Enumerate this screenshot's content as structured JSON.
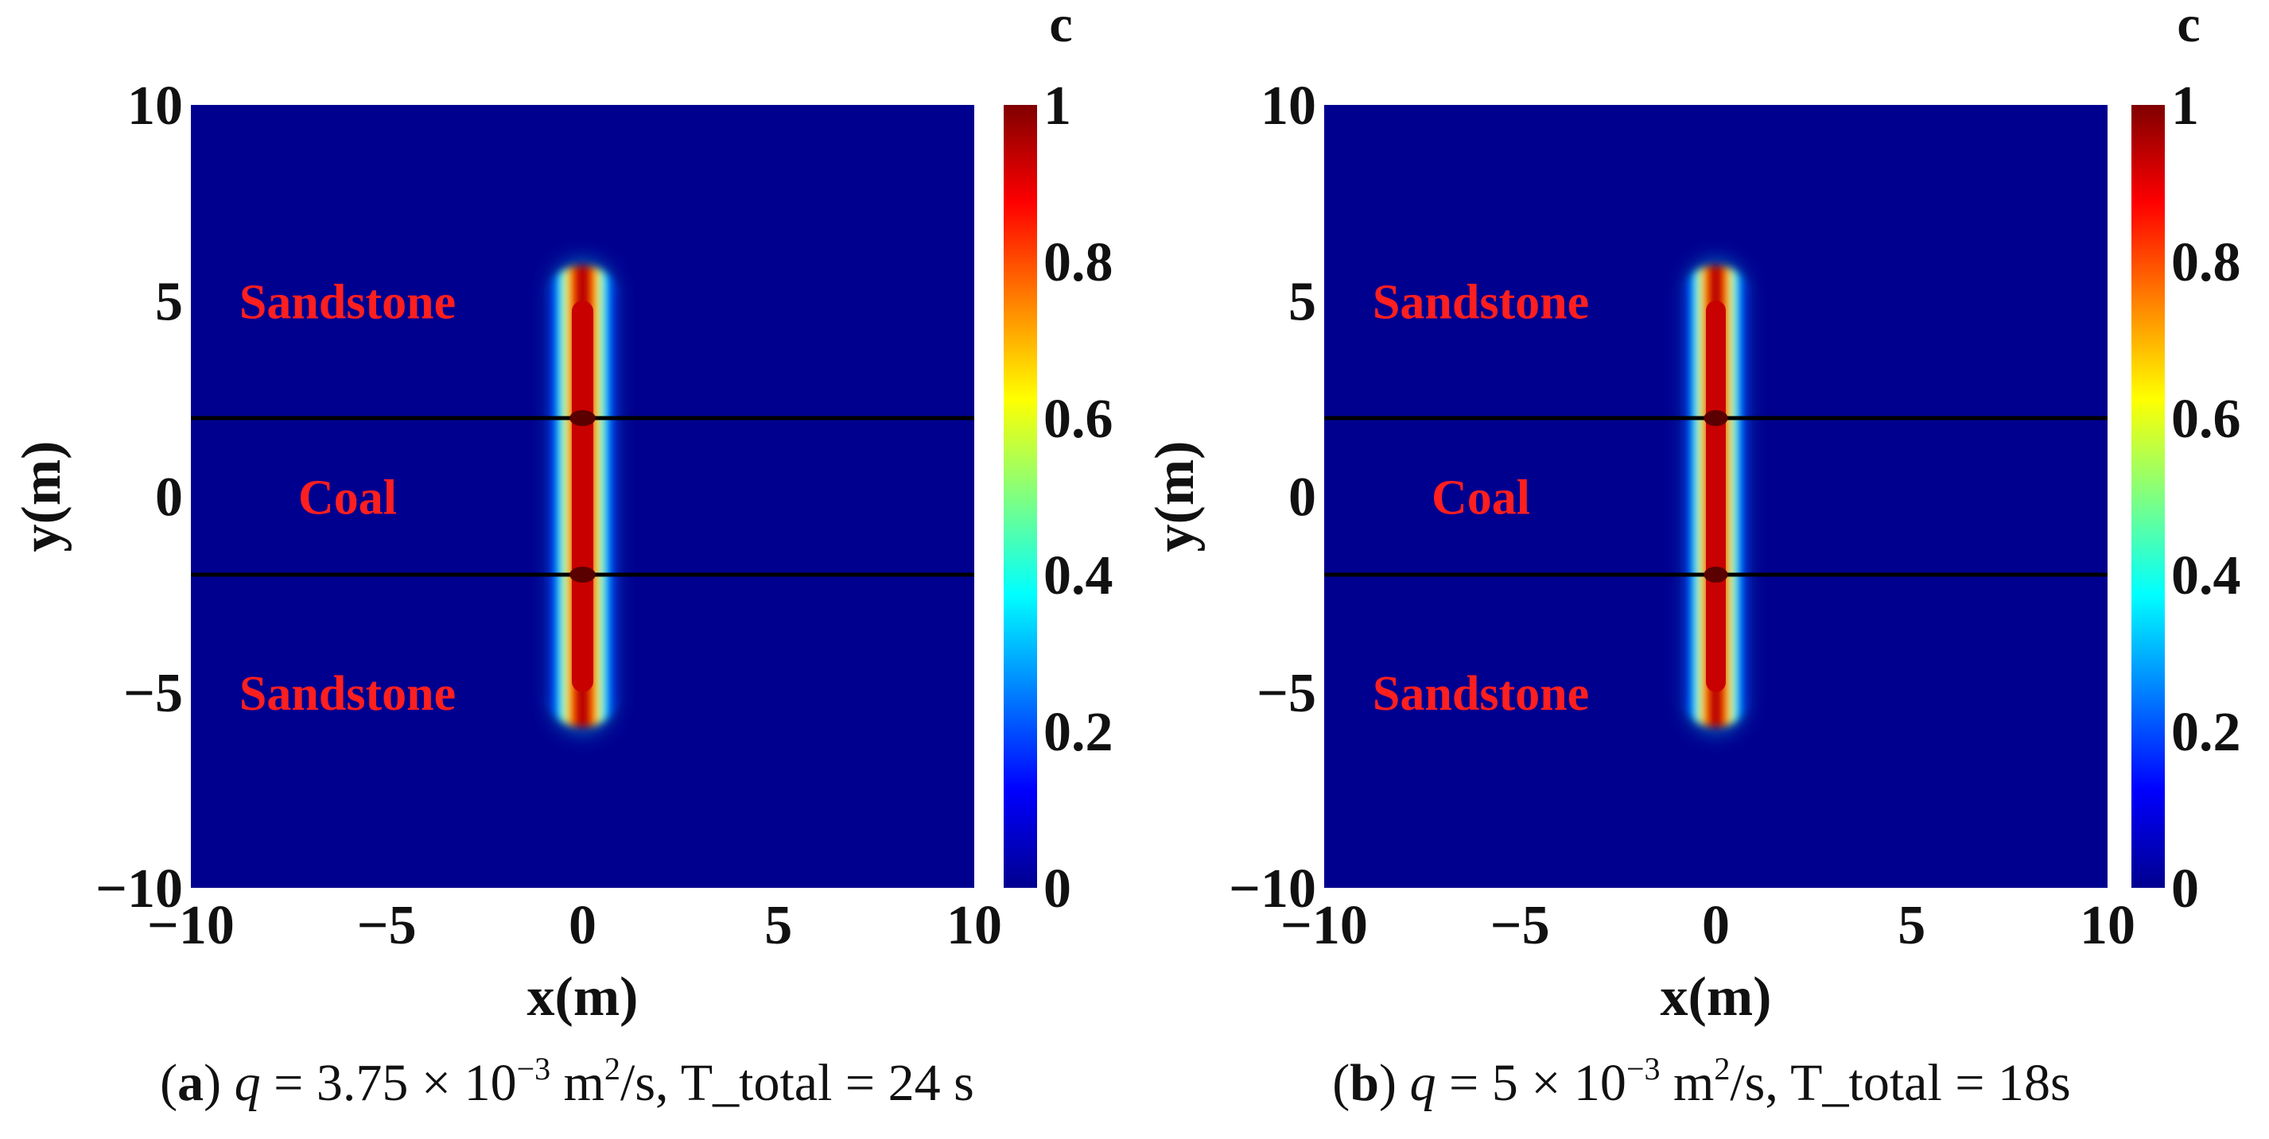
{
  "chart_data": [
    {
      "type": "heatmap",
      "panel": "a",
      "xlabel": "x(m)",
      "ylabel": "y(m)",
      "xlim": [
        -10,
        10
      ],
      "ylim": [
        -10,
        10
      ],
      "xticks": [
        -10,
        -5,
        0,
        5,
        10
      ],
      "yticks": [
        -10,
        -5,
        0,
        5,
        10
      ],
      "colorbar": {
        "title": "c",
        "range": [
          0,
          1
        ],
        "ticks": [
          "0",
          "0.2",
          "0.4",
          "0.6",
          "0.8",
          "1"
        ],
        "colormap": "jet"
      },
      "layers": [
        {
          "label": "Sandstone",
          "y_range": [
            2,
            10
          ]
        },
        {
          "label": "Coal",
          "y_range": [
            -2,
            2
          ]
        },
        {
          "label": "Sandstone",
          "y_range": [
            -10,
            -2
          ]
        }
      ],
      "layer_boundaries_y": [
        2,
        -2
      ],
      "background_value": 0,
      "plume": {
        "x_center": 0,
        "y_range": [
          -5,
          5
        ],
        "peak_value": 1,
        "half_width_x": 0.5
      },
      "caption": {
        "label": "a",
        "q_symbol": "q",
        "q_value": " = 3.75 × 10",
        "q_exponent": "−3",
        "q_unit": " m",
        "q_unit_exponent": "2",
        "rest": "/s, T_total = 24 s"
      }
    },
    {
      "type": "heatmap",
      "panel": "b",
      "xlabel": "x(m)",
      "ylabel": "y(m)",
      "xlim": [
        -10,
        10
      ],
      "ylim": [
        -10,
        10
      ],
      "xticks": [
        -10,
        -5,
        0,
        5,
        10
      ],
      "yticks": [
        -10,
        -5,
        0,
        5,
        10
      ],
      "colorbar": {
        "title": "c",
        "range": [
          0,
          1
        ],
        "ticks": [
          "0",
          "0.2",
          "0.4",
          "0.6",
          "0.8",
          "1"
        ],
        "colormap": "jet"
      },
      "layers": [
        {
          "label": "Sandstone",
          "y_range": [
            2,
            10
          ]
        },
        {
          "label": "Coal",
          "y_range": [
            -2,
            2
          ]
        },
        {
          "label": "Sandstone",
          "y_range": [
            -10,
            -2
          ]
        }
      ],
      "layer_boundaries_y": [
        2,
        -2
      ],
      "background_value": 0,
      "plume": {
        "x_center": 0,
        "y_range": [
          -5,
          5
        ],
        "peak_value": 1,
        "half_width_x": 0.46
      },
      "caption": {
        "label": "b",
        "q_symbol": "q",
        "q_value": " = 5 × 10",
        "q_exponent": "−3",
        "q_unit": " m",
        "q_unit_exponent": "2",
        "rest": "/s, T_total = 18s"
      }
    }
  ]
}
